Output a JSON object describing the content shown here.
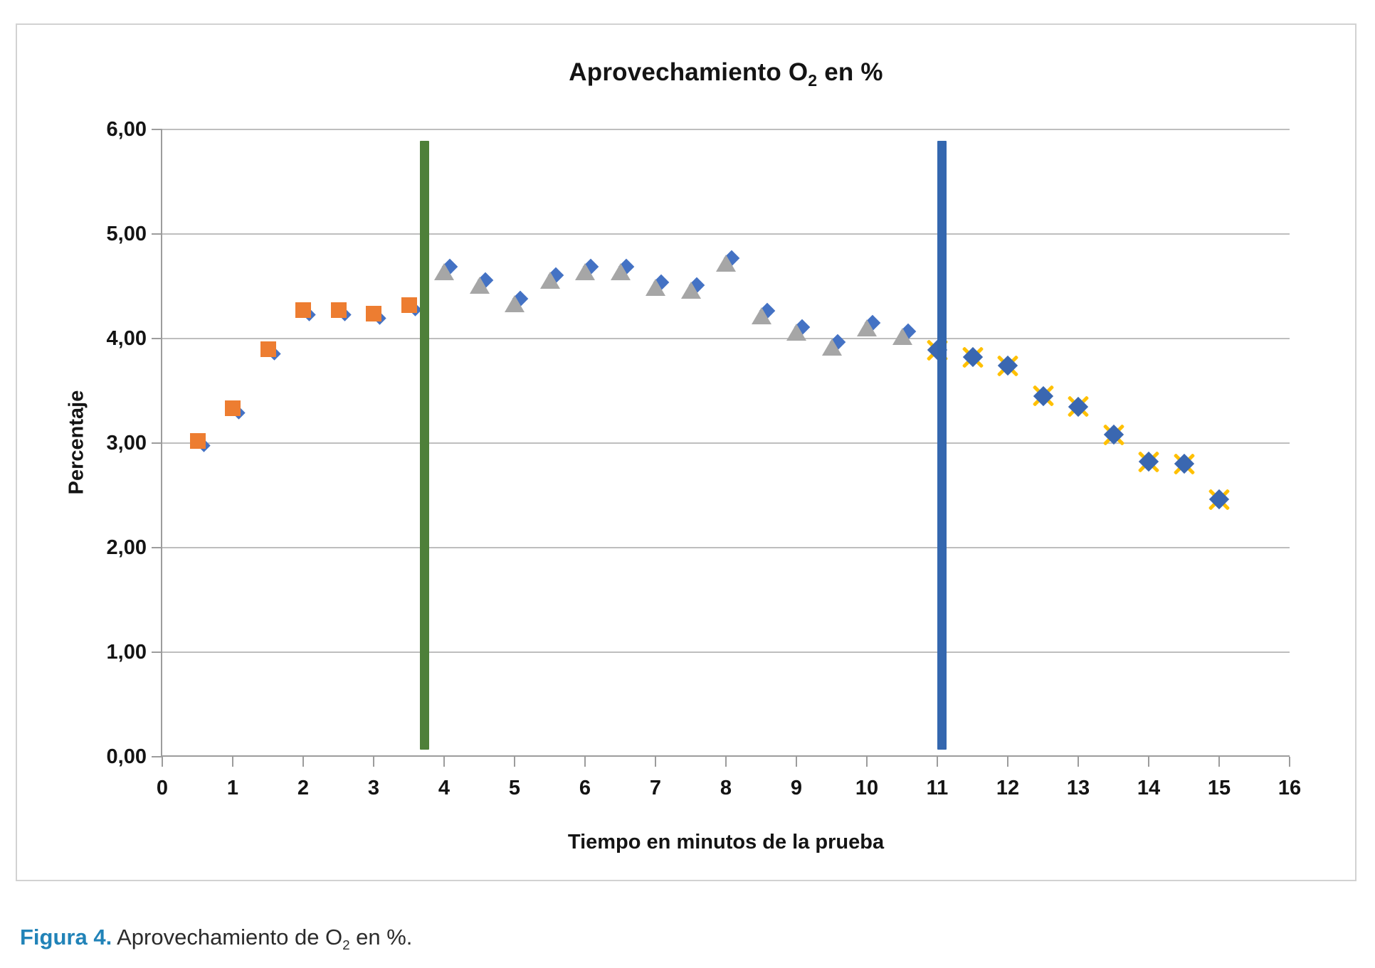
{
  "page": {
    "caption": {
      "label": "Figura 4.",
      "pre": " Aprovechamiento de O",
      "sub": "2",
      "post": " en %.",
      "label_color": "#2183B8"
    }
  },
  "chart_data": {
    "type": "scatter",
    "title": {
      "pre": "Aprovechamiento O",
      "sub": "2",
      "post": " en %",
      "full": "Aprovechamiento O2 en %"
    },
    "xlabel": "Tiempo en minutos de la prueba",
    "ylabel": "Percentaje",
    "xlim": [
      0,
      16
    ],
    "ylim": [
      0,
      6
    ],
    "x_ticks": [
      0,
      1,
      2,
      3,
      4,
      5,
      6,
      7,
      8,
      9,
      10,
      11,
      12,
      13,
      14,
      15,
      16
    ],
    "y_ticks": [
      {
        "value": 0,
        "label": "0,00"
      },
      {
        "value": 1,
        "label": "1,00"
      },
      {
        "value": 2,
        "label": "2,00"
      },
      {
        "value": 3,
        "label": "3,00"
      },
      {
        "value": 4,
        "label": "4,00"
      },
      {
        "value": 5,
        "label": "5,00"
      },
      {
        "value": 6,
        "label": "6,00"
      }
    ],
    "grid": "horizontal-only",
    "legend": "none",
    "series": [
      {
        "name": "fase-inicial-cuadrados",
        "marker": "square",
        "color": "#ED7D31",
        "underlay_color": "#4472C4",
        "points": [
          [
            0.5,
            3.02
          ],
          [
            1.0,
            3.33
          ],
          [
            1.5,
            3.9
          ],
          [
            2.0,
            4.27
          ],
          [
            2.5,
            4.27
          ],
          [
            3.0,
            4.24
          ],
          [
            3.5,
            4.32
          ]
        ]
      },
      {
        "name": "fase-media-triangulos",
        "marker": "triangle",
        "color": "#A6A6A6",
        "underlay_color": "#4472C4",
        "points": [
          [
            4.0,
            4.64
          ],
          [
            4.5,
            4.51
          ],
          [
            5.0,
            4.33
          ],
          [
            5.5,
            4.56
          ],
          [
            6.0,
            4.64
          ],
          [
            6.5,
            4.64
          ],
          [
            7.0,
            4.49
          ],
          [
            7.5,
            4.46
          ],
          [
            8.0,
            4.72
          ],
          [
            8.5,
            4.22
          ],
          [
            9.0,
            4.06
          ],
          [
            9.5,
            3.92
          ],
          [
            10.0,
            4.1
          ],
          [
            10.5,
            4.02
          ]
        ]
      },
      {
        "name": "fase-final-rombos-x",
        "marker": "diamond-x",
        "color": "#3A67B1",
        "x_color": "#FFC000",
        "points": [
          [
            11.0,
            3.89
          ],
          [
            11.5,
            3.82
          ],
          [
            12.0,
            3.74
          ],
          [
            12.5,
            3.45
          ],
          [
            13.0,
            3.35
          ],
          [
            13.5,
            3.08
          ],
          [
            14.0,
            2.82
          ],
          [
            14.5,
            2.8
          ],
          [
            15.0,
            2.46
          ]
        ]
      }
    ],
    "vlines": [
      {
        "name": "linea-verde",
        "x": 3.72,
        "y_from": 0.07,
        "y_to": 5.89,
        "color": "#4E8039"
      },
      {
        "name": "linea-azul",
        "x": 11.07,
        "y_from": 0.07,
        "y_to": 5.89,
        "color": "#3467AF"
      }
    ]
  }
}
